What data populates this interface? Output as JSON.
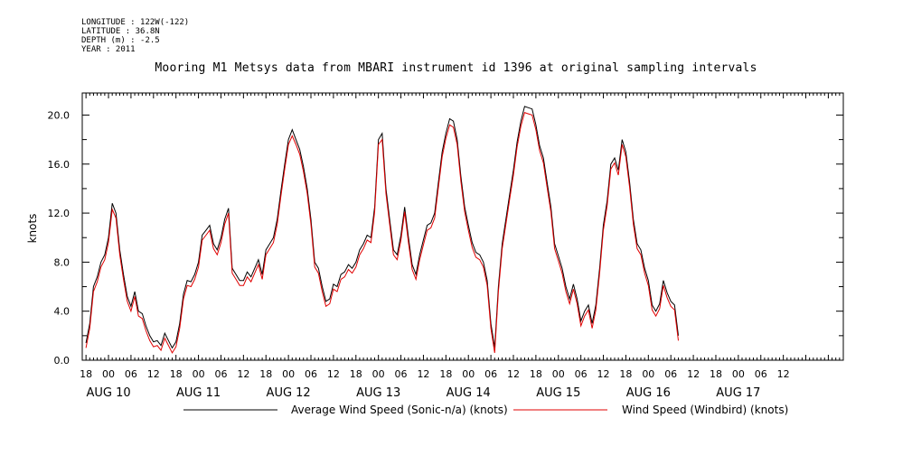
{
  "header": {
    "longitude": "LONGITUDE : 122W(-122)",
    "latitude": "LATITUDE : 36.8N",
    "depth": "DEPTH (m) : -2.5",
    "year": "YEAR : 2011"
  },
  "chart_data": {
    "type": "line",
    "title": "Mooring M1 Metsys data from MBARI instrument id 1396 at original sampling intervals",
    "ylabel": "knots",
    "ylim": [
      0,
      21.8
    ],
    "yticks": [
      "0.0",
      "4.0",
      "8.0",
      "12.0",
      "16.0",
      "20.0"
    ],
    "x_hour_labels": [
      "18",
      "00",
      "06",
      "12",
      "18",
      "00",
      "06",
      "12",
      "18",
      "00",
      "06",
      "12",
      "18",
      "00",
      "06",
      "12",
      "18",
      "00",
      "06",
      "12",
      "18",
      "00",
      "06",
      "12",
      "18",
      "00",
      "06",
      "12",
      "18",
      "00",
      "06",
      "12"
    ],
    "x_day_labels": [
      "AUG 10",
      "AUG 11",
      "AUG 12",
      "AUG 13",
      "AUG 14",
      "AUG 15",
      "AUG 16",
      "AUG 17"
    ],
    "x_range_hours": [
      -7,
      196
    ],
    "grid": false,
    "legend": "bottom",
    "series": [
      {
        "name": "Average Wind Speed (Sonic-n/a) (knots)",
        "color": "#000000",
        "points": [
          [
            -6,
            1.4
          ],
          [
            -5,
            3.0
          ],
          [
            -4,
            6.0
          ],
          [
            -3,
            6.8
          ],
          [
            -2,
            8.0
          ],
          [
            -1,
            8.6
          ],
          [
            0,
            10.0
          ],
          [
            1,
            12.8
          ],
          [
            2,
            12.0
          ],
          [
            3,
            9.0
          ],
          [
            4,
            7.0
          ],
          [
            5,
            5.2
          ],
          [
            6,
            4.4
          ],
          [
            7,
            5.6
          ],
          [
            8,
            4.0
          ],
          [
            9,
            3.8
          ],
          [
            10,
            2.8
          ],
          [
            11,
            2.0
          ],
          [
            12,
            1.5
          ],
          [
            13,
            1.6
          ],
          [
            14,
            1.2
          ],
          [
            15,
            2.2
          ],
          [
            16,
            1.6
          ],
          [
            17,
            1.0
          ],
          [
            18,
            1.5
          ],
          [
            19,
            3.0
          ],
          [
            20,
            5.4
          ],
          [
            21,
            6.5
          ],
          [
            22,
            6.4
          ],
          [
            23,
            7.0
          ],
          [
            24,
            8.0
          ],
          [
            25,
            10.2
          ],
          [
            26,
            10.6
          ],
          [
            27,
            11.0
          ],
          [
            28,
            9.5
          ],
          [
            29,
            9.0
          ],
          [
            30,
            10.0
          ],
          [
            31,
            11.5
          ],
          [
            32,
            12.4
          ],
          [
            33,
            7.5
          ],
          [
            34,
            7.0
          ],
          [
            35,
            6.5
          ],
          [
            36,
            6.5
          ],
          [
            37,
            7.2
          ],
          [
            38,
            6.8
          ],
          [
            39,
            7.5
          ],
          [
            40,
            8.2
          ],
          [
            41,
            7.0
          ],
          [
            42,
            9.0
          ],
          [
            43,
            9.5
          ],
          [
            44,
            10.0
          ],
          [
            45,
            11.5
          ],
          [
            46,
            13.8
          ],
          [
            47,
            16.0
          ],
          [
            48,
            18.0
          ],
          [
            49,
            18.8
          ],
          [
            50,
            18.0
          ],
          [
            51,
            17.2
          ],
          [
            52,
            15.8
          ],
          [
            53,
            14.0
          ],
          [
            54,
            11.5
          ],
          [
            55,
            8.0
          ],
          [
            56,
            7.5
          ],
          [
            57,
            6.0
          ],
          [
            58,
            4.8
          ],
          [
            59,
            5.0
          ],
          [
            60,
            6.2
          ],
          [
            61,
            6.0
          ],
          [
            62,
            7.0
          ],
          [
            63,
            7.2
          ],
          [
            64,
            7.8
          ],
          [
            65,
            7.5
          ],
          [
            66,
            8.0
          ],
          [
            67,
            9.0
          ],
          [
            68,
            9.5
          ],
          [
            69,
            10.2
          ],
          [
            70,
            10.0
          ],
          [
            71,
            12.5
          ],
          [
            72,
            18.0
          ],
          [
            73,
            18.5
          ],
          [
            74,
            14.0
          ],
          [
            75,
            11.5
          ],
          [
            76,
            9.0
          ],
          [
            77,
            8.6
          ],
          [
            78,
            10.2
          ],
          [
            79,
            12.5
          ],
          [
            80,
            10.0
          ],
          [
            81,
            7.8
          ],
          [
            82,
            7.0
          ],
          [
            83,
            8.6
          ],
          [
            84,
            9.8
          ],
          [
            85,
            11.0
          ],
          [
            86,
            11.2
          ],
          [
            87,
            12.0
          ],
          [
            88,
            14.5
          ],
          [
            89,
            17.0
          ],
          [
            90,
            18.5
          ],
          [
            91,
            19.7
          ],
          [
            92,
            19.5
          ],
          [
            93,
            18.0
          ],
          [
            94,
            15.0
          ],
          [
            95,
            12.5
          ],
          [
            96,
            11.0
          ],
          [
            97,
            9.6
          ],
          [
            98,
            8.8
          ],
          [
            99,
            8.6
          ],
          [
            100,
            8.0
          ],
          [
            101,
            6.5
          ],
          [
            102,
            3.0
          ],
          [
            103,
            1.0
          ],
          [
            104,
            6.0
          ],
          [
            105,
            9.5
          ],
          [
            106,
            11.5
          ],
          [
            107,
            13.5
          ],
          [
            108,
            15.5
          ],
          [
            109,
            17.8
          ],
          [
            110,
            19.5
          ],
          [
            111,
            20.7
          ],
          [
            112,
            20.6
          ],
          [
            113,
            20.5
          ],
          [
            114,
            19.2
          ],
          [
            115,
            17.5
          ],
          [
            116,
            16.5
          ],
          [
            117,
            14.5
          ],
          [
            118,
            12.5
          ],
          [
            119,
            9.5
          ],
          [
            120,
            8.5
          ],
          [
            121,
            7.5
          ],
          [
            122,
            6.0
          ],
          [
            123,
            5.0
          ],
          [
            124,
            6.2
          ],
          [
            125,
            5.0
          ],
          [
            126,
            3.2
          ],
          [
            127,
            4.0
          ],
          [
            128,
            4.5
          ],
          [
            129,
            3.0
          ],
          [
            130,
            4.5
          ],
          [
            131,
            7.5
          ],
          [
            132,
            11.0
          ],
          [
            133,
            13.0
          ],
          [
            134,
            16.0
          ],
          [
            135,
            16.5
          ],
          [
            136,
            15.5
          ],
          [
            137,
            18.0
          ],
          [
            138,
            17.0
          ],
          [
            139,
            14.5
          ],
          [
            140,
            11.5
          ],
          [
            141,
            9.5
          ],
          [
            142,
            9.0
          ],
          [
            143,
            7.5
          ],
          [
            144,
            6.5
          ],
          [
            145,
            4.5
          ],
          [
            146,
            4.0
          ],
          [
            147,
            4.6
          ],
          [
            148,
            6.5
          ],
          [
            149,
            5.5
          ],
          [
            150,
            4.8
          ],
          [
            151,
            4.5
          ],
          [
            152,
            2.0
          ]
        ]
      },
      {
        "name": "Wind Speed (Windbird) (knots)",
        "color": "#e00000",
        "points": [
          [
            -6,
            1.0
          ],
          [
            -5,
            2.6
          ],
          [
            -4,
            5.6
          ],
          [
            -3,
            6.4
          ],
          [
            -2,
            7.6
          ],
          [
            -1,
            8.2
          ],
          [
            0,
            9.6
          ],
          [
            1,
            12.3
          ],
          [
            2,
            11.6
          ],
          [
            3,
            8.6
          ],
          [
            4,
            6.6
          ],
          [
            5,
            4.8
          ],
          [
            6,
            4.0
          ],
          [
            7,
            5.2
          ],
          [
            8,
            3.6
          ],
          [
            9,
            3.4
          ],
          [
            10,
            2.4
          ],
          [
            11,
            1.6
          ],
          [
            12,
            1.1
          ],
          [
            13,
            1.2
          ],
          [
            14,
            0.8
          ],
          [
            15,
            1.8
          ],
          [
            16,
            1.2
          ],
          [
            17,
            0.6
          ],
          [
            18,
            1.1
          ],
          [
            19,
            2.6
          ],
          [
            20,
            5.0
          ],
          [
            21,
            6.1
          ],
          [
            22,
            6.0
          ],
          [
            23,
            6.6
          ],
          [
            24,
            7.6
          ],
          [
            25,
            9.8
          ],
          [
            26,
            10.2
          ],
          [
            27,
            10.6
          ],
          [
            28,
            9.1
          ],
          [
            29,
            8.6
          ],
          [
            30,
            9.6
          ],
          [
            31,
            11.1
          ],
          [
            32,
            12.0
          ],
          [
            33,
            7.1
          ],
          [
            34,
            6.6
          ],
          [
            35,
            6.1
          ],
          [
            36,
            6.1
          ],
          [
            37,
            6.8
          ],
          [
            38,
            6.4
          ],
          [
            39,
            7.1
          ],
          [
            40,
            7.8
          ],
          [
            41,
            6.6
          ],
          [
            42,
            8.6
          ],
          [
            43,
            9.1
          ],
          [
            44,
            9.6
          ],
          [
            45,
            11.1
          ],
          [
            46,
            13.4
          ],
          [
            47,
            15.6
          ],
          [
            48,
            17.6
          ],
          [
            49,
            18.3
          ],
          [
            50,
            17.6
          ],
          [
            51,
            16.8
          ],
          [
            52,
            15.4
          ],
          [
            53,
            13.6
          ],
          [
            54,
            11.1
          ],
          [
            55,
            7.6
          ],
          [
            56,
            7.1
          ],
          [
            57,
            5.6
          ],
          [
            58,
            4.4
          ],
          [
            59,
            4.6
          ],
          [
            60,
            5.8
          ],
          [
            61,
            5.6
          ],
          [
            62,
            6.6
          ],
          [
            63,
            6.8
          ],
          [
            64,
            7.4
          ],
          [
            65,
            7.1
          ],
          [
            66,
            7.6
          ],
          [
            67,
            8.6
          ],
          [
            68,
            9.1
          ],
          [
            69,
            9.8
          ],
          [
            70,
            9.6
          ],
          [
            71,
            12.1
          ],
          [
            72,
            17.6
          ],
          [
            73,
            18.0
          ],
          [
            74,
            13.6
          ],
          [
            75,
            11.1
          ],
          [
            76,
            8.6
          ],
          [
            77,
            8.2
          ],
          [
            78,
            9.8
          ],
          [
            79,
            12.1
          ],
          [
            80,
            9.6
          ],
          [
            81,
            7.4
          ],
          [
            82,
            6.6
          ],
          [
            83,
            8.2
          ],
          [
            84,
            9.4
          ],
          [
            85,
            10.6
          ],
          [
            86,
            10.8
          ],
          [
            87,
            11.6
          ],
          [
            88,
            14.1
          ],
          [
            89,
            16.6
          ],
          [
            90,
            18.1
          ],
          [
            91,
            19.2
          ],
          [
            92,
            19.0
          ],
          [
            93,
            17.6
          ],
          [
            94,
            14.6
          ],
          [
            95,
            12.1
          ],
          [
            96,
            10.6
          ],
          [
            97,
            9.2
          ],
          [
            98,
            8.4
          ],
          [
            99,
            8.2
          ],
          [
            100,
            7.6
          ],
          [
            101,
            6.1
          ],
          [
            102,
            2.6
          ],
          [
            103,
            0.6
          ],
          [
            104,
            5.6
          ],
          [
            105,
            9.1
          ],
          [
            106,
            11.1
          ],
          [
            107,
            13.1
          ],
          [
            108,
            15.1
          ],
          [
            109,
            17.4
          ],
          [
            110,
            19.1
          ],
          [
            111,
            20.2
          ],
          [
            112,
            20.1
          ],
          [
            113,
            20.0
          ],
          [
            114,
            18.8
          ],
          [
            115,
            17.1
          ],
          [
            116,
            16.1
          ],
          [
            117,
            14.1
          ],
          [
            118,
            12.1
          ],
          [
            119,
            9.1
          ],
          [
            120,
            8.1
          ],
          [
            121,
            7.1
          ],
          [
            122,
            5.6
          ],
          [
            123,
            4.6
          ],
          [
            124,
            5.8
          ],
          [
            125,
            4.6
          ],
          [
            126,
            2.8
          ],
          [
            127,
            3.6
          ],
          [
            128,
            4.1
          ],
          [
            129,
            2.6
          ],
          [
            130,
            4.1
          ],
          [
            131,
            7.1
          ],
          [
            132,
            10.6
          ],
          [
            133,
            12.6
          ],
          [
            134,
            15.6
          ],
          [
            135,
            16.1
          ],
          [
            136,
            15.1
          ],
          [
            137,
            17.6
          ],
          [
            138,
            16.6
          ],
          [
            139,
            14.1
          ],
          [
            140,
            11.1
          ],
          [
            141,
            9.1
          ],
          [
            142,
            8.6
          ],
          [
            143,
            7.1
          ],
          [
            144,
            6.1
          ],
          [
            145,
            4.1
          ],
          [
            146,
            3.6
          ],
          [
            147,
            4.2
          ],
          [
            148,
            6.1
          ],
          [
            149,
            5.1
          ],
          [
            150,
            4.4
          ],
          [
            151,
            4.1
          ],
          [
            152,
            1.6
          ]
        ]
      }
    ]
  }
}
